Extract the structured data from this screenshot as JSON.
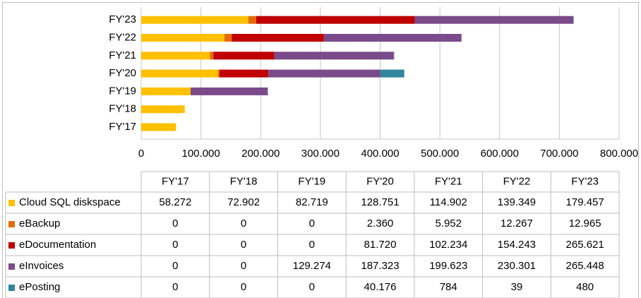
{
  "chart_data": {
    "type": "bar",
    "orientation": "horizontal",
    "stacked": true,
    "categories": [
      "FY'17",
      "FY'18",
      "FY'19",
      "FY'20",
      "FY'21",
      "FY'22",
      "FY'23"
    ],
    "series": [
      {
        "name": "Cloud SQL diskspace",
        "color": "#ffc000",
        "values": [
          58272,
          72902,
          82719,
          128751,
          114902,
          139349,
          179457
        ],
        "value_labels": [
          "58.272",
          "72.902",
          "82.719",
          "128.751",
          "114.902",
          "139.349",
          "179.457"
        ]
      },
      {
        "name": "eBackup",
        "color": "#e36c09",
        "values": [
          0,
          0,
          0,
          2360,
          5952,
          12267,
          12965
        ],
        "value_labels": [
          "0",
          "0",
          "0",
          "2.360",
          "5.952",
          "12.267",
          "12.965"
        ]
      },
      {
        "name": "eDocumentation",
        "color": "#c00000",
        "values": [
          0,
          0,
          0,
          81720,
          102234,
          154243,
          265621
        ],
        "value_labels": [
          "0",
          "0",
          "0",
          "81.720",
          "102.234",
          "154.243",
          "265.621"
        ]
      },
      {
        "name": "eInvoices",
        "color": "#7b4a8a",
        "values": [
          0,
          0,
          129274,
          187323,
          199623,
          230301,
          265448
        ],
        "value_labels": [
          "0",
          "0",
          "129.274",
          "187.323",
          "199.623",
          "230.301",
          "265.448"
        ]
      },
      {
        "name": "ePosting",
        "color": "#31859c",
        "values": [
          0,
          0,
          0,
          40176,
          784,
          39,
          480
        ],
        "value_labels": [
          "0",
          "0",
          "0",
          "40.176",
          "784",
          "39",
          "480"
        ]
      }
    ],
    "xlim": [
      0,
      800000
    ],
    "xticks": [
      0,
      {
        "value": 100000,
        "label": "100.000"
      },
      {
        "value": 200000,
        "label": "200.000"
      },
      {
        "value": 300000,
        "label": "300.000"
      },
      {
        "value": 400000,
        "label": "400.000"
      },
      {
        "value": 500000,
        "label": "500.000"
      },
      {
        "value": 600000,
        "label": "600.000"
      },
      {
        "value": 700000,
        "label": "700.000"
      },
      {
        "value": 800000,
        "label": "800.000"
      }
    ],
    "grid": true
  }
}
